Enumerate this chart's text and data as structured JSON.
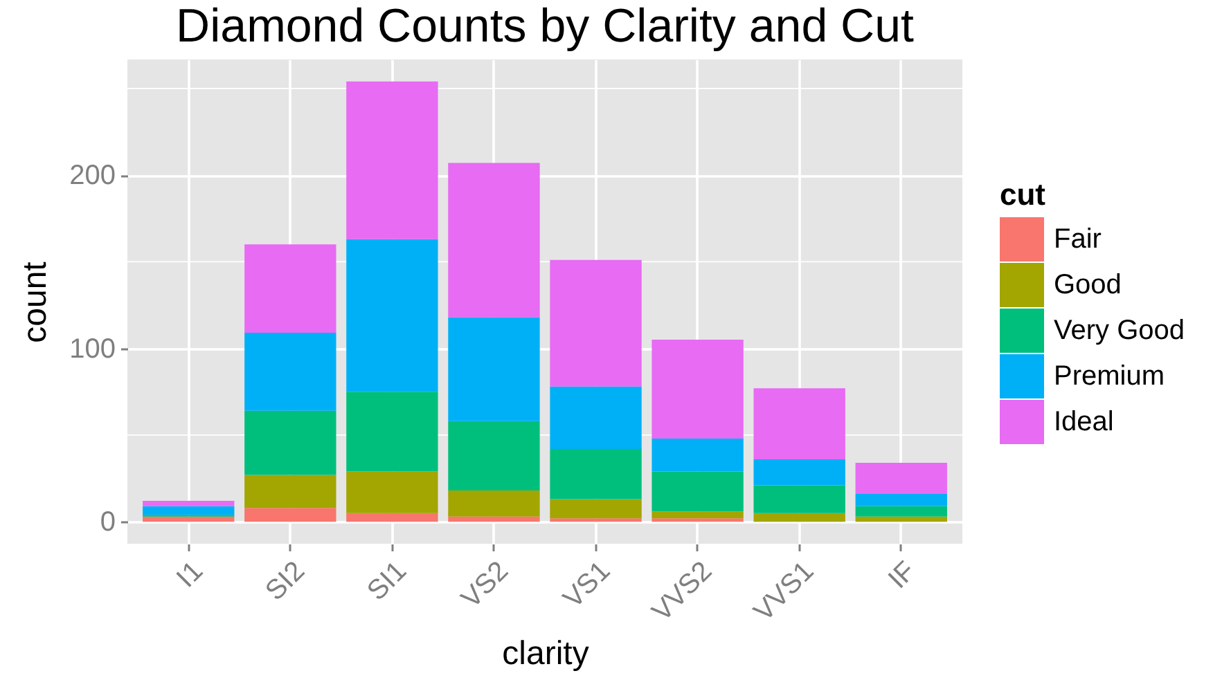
{
  "chart_data": {
    "type": "bar",
    "title": "Diamond Counts by Clarity and Cut",
    "xlabel": "clarity",
    "ylabel": "count",
    "legend_title": "cut",
    "categories": [
      "I1",
      "SI2",
      "SI1",
      "VS2",
      "VS1",
      "VVS2",
      "VVS1",
      "IF"
    ],
    "stacked": true,
    "series": [
      {
        "name": "Fair",
        "color": "#f8766d",
        "values": [
          3,
          8,
          5,
          3,
          2,
          2,
          0,
          0
        ]
      },
      {
        "name": "Good",
        "color": "#a3a500",
        "values": [
          0,
          19,
          24,
          15,
          11,
          4,
          5,
          3
        ]
      },
      {
        "name": "Very Good",
        "color": "#00bf7d",
        "values": [
          1,
          37,
          46,
          40,
          29,
          23,
          16,
          6
        ]
      },
      {
        "name": "Premium",
        "color": "#00b0f6",
        "values": [
          5,
          45,
          88,
          60,
          36,
          19,
          15,
          7
        ]
      },
      {
        "name": "Ideal",
        "color": "#e76bf3",
        "values": [
          3,
          51,
          91,
          89,
          73,
          57,
          41,
          18
        ]
      }
    ],
    "ylim": [
      -12.7,
      266.7
    ],
    "yticks": [
      0,
      100,
      200
    ],
    "grid": true,
    "legend": "right"
  }
}
